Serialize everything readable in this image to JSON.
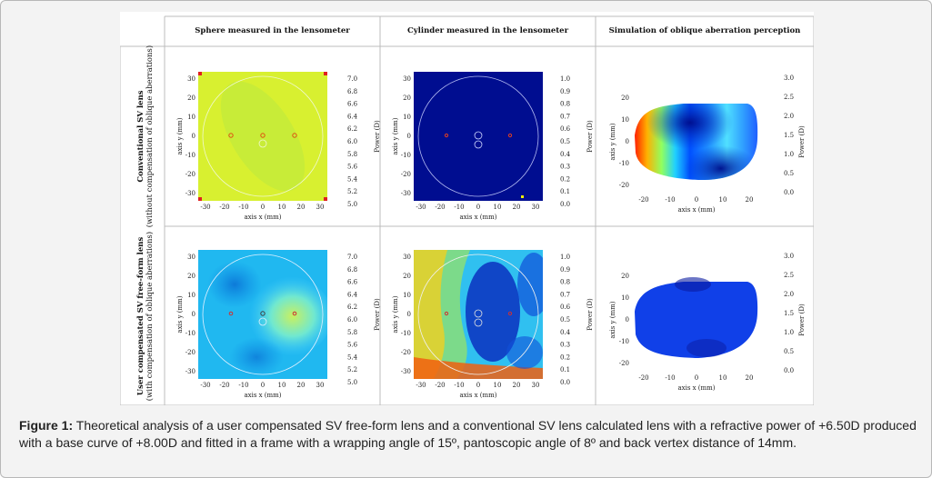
{
  "figure": {
    "columns": [
      "Sphere measured in the lensometer",
      "Cylinder measured in the lensometer",
      "Simulation of oblique aberration perception"
    ],
    "rows": [
      {
        "title": "Conventional SV lens",
        "subtitle": "(without compensation of oblique aberrations)"
      },
      {
        "title": "User compensated SV free-form lens",
        "subtitle": "(with compensation of oblique aberrations)"
      }
    ],
    "axis_x_label": "axis x (mm)",
    "axis_y_label": "axis y (mm)",
    "power_label": "Power (D)",
    "x_ticks": [
      "-30",
      "-20",
      "-10",
      "0",
      "10",
      "20",
      "30"
    ],
    "y_ticks": [
      "30",
      "20",
      "10",
      "0",
      "-10",
      "-20",
      "-30"
    ],
    "sim_x_ticks": [
      "-20",
      "-10",
      "0",
      "10",
      "20"
    ],
    "sim_y_ticks": [
      "20",
      "10",
      "0",
      "-10",
      "-20"
    ],
    "sphere_scale": [
      "7.0",
      "6.8",
      "6.6",
      "6.4",
      "6.2",
      "6.0",
      "5.8",
      "5.6",
      "5.4",
      "5.2",
      "5.0"
    ],
    "cylinder_scale": [
      "1.0",
      "0.9",
      "0.8",
      "0.7",
      "0.6",
      "0.5",
      "0.4",
      "0.3",
      "0.2",
      "0.1",
      "0.0"
    ],
    "sim_scale": [
      "3.0",
      "2.5",
      "2.0",
      "1.5",
      "1.0",
      "0.5",
      "0.0"
    ]
  },
  "caption": {
    "label": "Figure 1:",
    "text": "Theoretical analysis of a user compensated SV free-form lens and a conventional SV lens calculated lens with a refractive power of +6.50D produced with a base curve of +8.00D and fitted in a frame with a wrapping angle of 15º, pantoscopic angle of 8º and back vertex distance of 14mm."
  },
  "colors": {
    "jet_dark": "#00008f",
    "jet_blue": "#0030ff",
    "jet_cyan": "#00e0ff",
    "jet_yellow": "#f0f000",
    "jet_red": "#ff3000"
  }
}
